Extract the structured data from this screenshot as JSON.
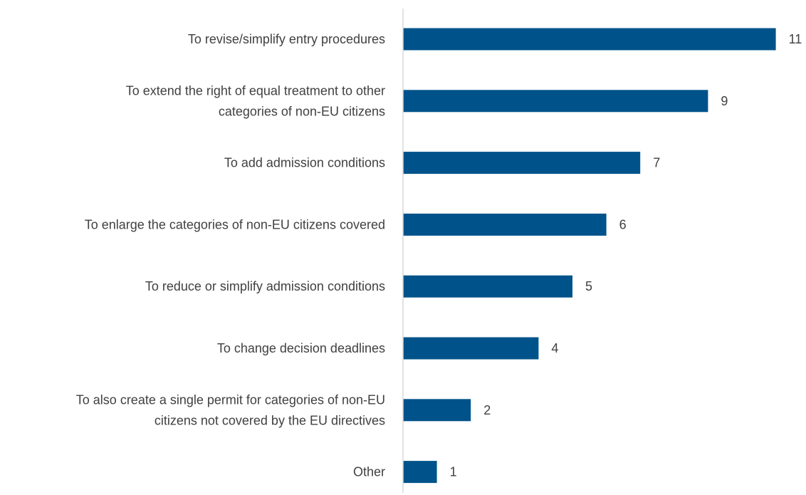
{
  "chart_data": {
    "type": "bar",
    "orientation": "horizontal",
    "categories": [
      "To revise/simplify entry procedures",
      "To extend the right of equal treatment to other categories of non-EU citizens",
      "To add admission conditions",
      "To enlarge the categories of non-EU citizens covered",
      "To reduce or simplify admission conditions",
      "To change decision deadlines",
      "To also create a single permit for categories of non-EU citizens not covered by the EU directives",
      "Other"
    ],
    "category_lines": [
      [
        "To revise/simplify entry procedures"
      ],
      [
        "To extend the right of equal treatment to other",
        "categories of non-EU citizens"
      ],
      [
        "To add admission conditions"
      ],
      [
        "To enlarge the categories of non-EU citizens covered"
      ],
      [
        "To reduce or simplify admission conditions"
      ],
      [
        "To change decision deadlines"
      ],
      [
        "To also create a single permit for categories of non-EU",
        "citizens not covered by the EU directives"
      ],
      [
        "Other"
      ]
    ],
    "values": [
      11,
      9,
      7,
      6,
      5,
      4,
      2,
      1
    ],
    "value_labels": [
      "11",
      "9",
      "7",
      "6",
      "5",
      "4",
      "2",
      "1"
    ],
    "title": "",
    "xlabel": "",
    "ylabel": "",
    "xlim": [
      0,
      12
    ],
    "grid": false,
    "legend": "none",
    "colors": {
      "bar": "#00538a",
      "text": "#404040",
      "axis": "#d9d9d9"
    }
  }
}
